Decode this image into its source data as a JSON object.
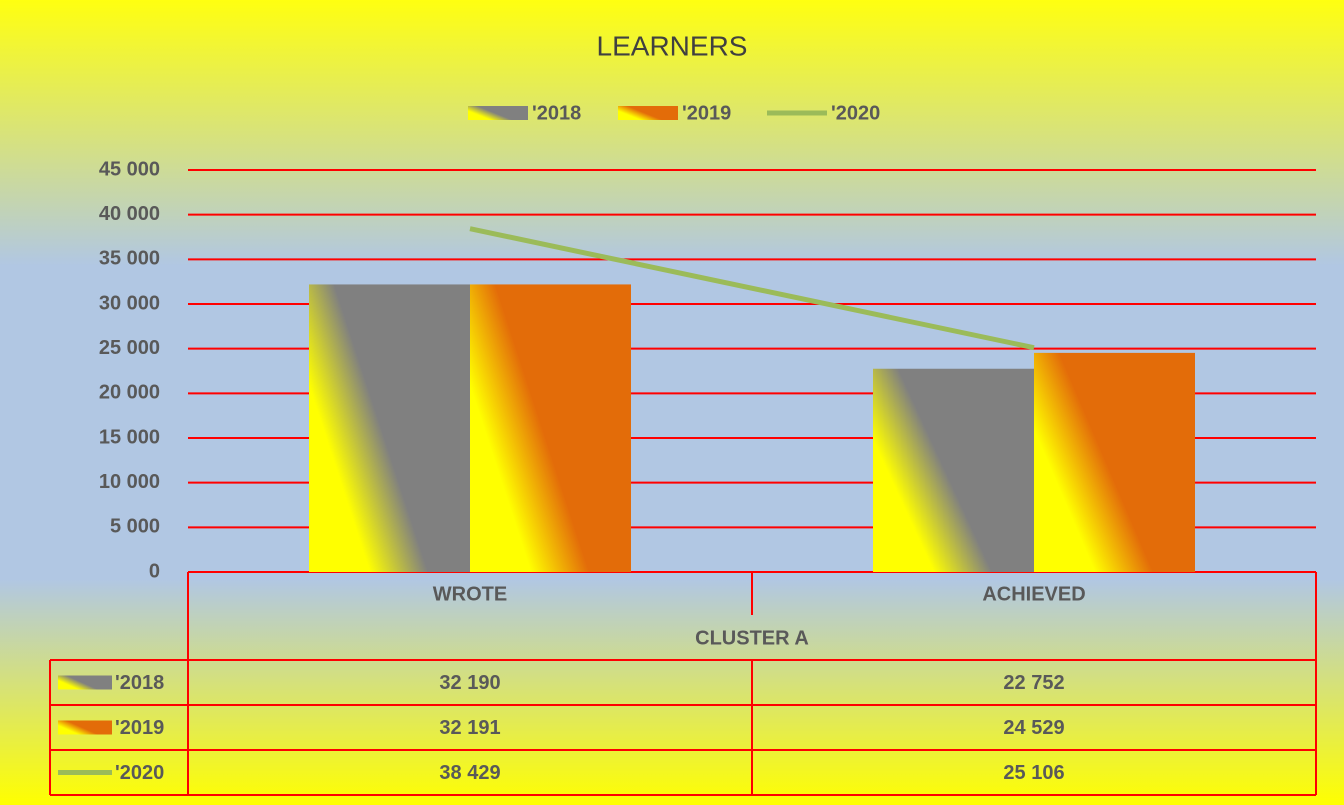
{
  "chart_data": {
    "type": "bar",
    "title": "LEARNERS",
    "categories": [
      "WROTE",
      "ACHIEVED"
    ],
    "group_label": "CLUSTER A",
    "series": [
      {
        "name": "'2018",
        "type": "bar",
        "color": "#808080",
        "values": [
          32190,
          22752
        ],
        "value_labels": [
          "32 190",
          "22 752"
        ]
      },
      {
        "name": "'2019",
        "type": "bar",
        "color": "#e36c09",
        "values": [
          32191,
          24529
        ],
        "value_labels": [
          "32 191",
          "24 529"
        ]
      },
      {
        "name": "'2020",
        "type": "line",
        "color": "#9bbb59",
        "values": [
          38429,
          25106
        ],
        "value_labels": [
          "38 429",
          "25 106"
        ]
      }
    ],
    "ylim": [
      0,
      45000
    ],
    "yticks": [
      0,
      {
        "value": 5000,
        "label": "5 000"
      },
      {
        "value": 10000,
        "label": "10 000"
      },
      {
        "value": 15000,
        "label": "15 000"
      },
      {
        "value": 20000,
        "label": "20 000"
      },
      {
        "value": 25000,
        "label": "25 000"
      },
      {
        "value": 30000,
        "label": "30 000"
      },
      {
        "value": 35000,
        "label": "35 000"
      },
      {
        "value": 40000,
        "label": "40 000"
      },
      {
        "value": 45000,
        "label": "45 000"
      }
    ],
    "grid": true,
    "grid_color": "#ff0000",
    "legend": "top"
  }
}
